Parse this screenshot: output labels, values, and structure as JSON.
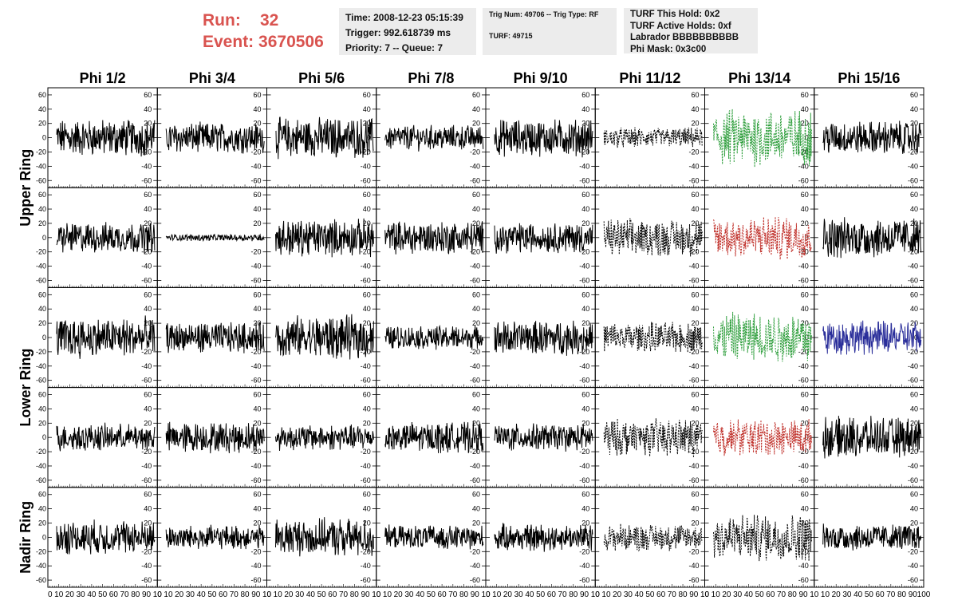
{
  "header": {
    "run_label": "Run:",
    "run_value": "32",
    "event_label": "Event:",
    "event_value": "3670506",
    "time": "Time: 2008-12-23 05:15:39",
    "trigger": "Trigger: 992.618739 ms",
    "priority": "Priority: 7 -- Queue: 7",
    "trig_num": "Trig Num: 49706 -- Trig Type: RF",
    "turf": "TURF: 49715",
    "turf_this_hold": "TURF This Hold: 0x2",
    "turf_active_holds": "TURF Active Holds: 0xf",
    "labrador": "Labrador BBBBBBBBBB",
    "phi_mask": "Phi Mask: 0x3c00"
  },
  "chart_data": {
    "type": "line",
    "columns": [
      "Phi 1/2",
      "Phi 3/4",
      "Phi 5/6",
      "Phi 7/8",
      "Phi 9/10",
      "Phi 11/12",
      "Phi 13/14",
      "Phi 15/16"
    ],
    "ring_labels": [
      "Upper Ring",
      "Lower Ring",
      "Nadir Ring"
    ],
    "x_range": [
      0,
      100
    ],
    "x_ticks_first": [
      "0",
      "10",
      "20",
      "30",
      "40",
      "50",
      "60",
      "70",
      "80",
      "90",
      "10"
    ],
    "x_ticks_last": [
      "10",
      "20",
      "30",
      "40",
      "50",
      "60",
      "70",
      "80",
      "90",
      "100"
    ],
    "y_range": [
      -70,
      70
    ],
    "y_ticks": [
      -60,
      -40,
      -20,
      0,
      20,
      40,
      60
    ],
    "grid": false,
    "colors": {
      "normal": "#000000",
      "green": "#2e9e3c",
      "red": "#c0302a",
      "blue": "#2a2e9a",
      "header_red": "#d9534f",
      "info_bg": "#ececec"
    },
    "rows": [
      {
        "styles": [
          "normal",
          "normal",
          "normal",
          "normal",
          "normal",
          "dashed",
          "green-dashed",
          "normal"
        ],
        "amps": [
          22,
          18,
          24,
          15,
          22,
          12,
          34,
          20
        ]
      },
      {
        "styles": [
          "normal",
          "normal",
          "normal",
          "normal",
          "normal",
          "dashed",
          "red-dashed",
          "normal"
        ],
        "amps": [
          18,
          4,
          22,
          20,
          18,
          22,
          26,
          24
        ]
      },
      {
        "styles": [
          "normal",
          "normal",
          "normal",
          "normal",
          "normal",
          "dashed",
          "green-dashed",
          "blue"
        ],
        "amps": [
          24,
          18,
          26,
          14,
          20,
          18,
          30,
          20
        ]
      },
      {
        "styles": [
          "normal",
          "normal",
          "normal",
          "normal",
          "normal",
          "dashed",
          "red-dashed",
          "normal"
        ],
        "amps": [
          16,
          18,
          15,
          18,
          16,
          22,
          22,
          24
        ]
      },
      {
        "styles": [
          "normal",
          "normal",
          "normal",
          "normal",
          "normal",
          "dashed",
          "dashed",
          "normal"
        ],
        "amps": [
          20,
          14,
          22,
          14,
          16,
          16,
          28,
          16
        ]
      }
    ]
  }
}
